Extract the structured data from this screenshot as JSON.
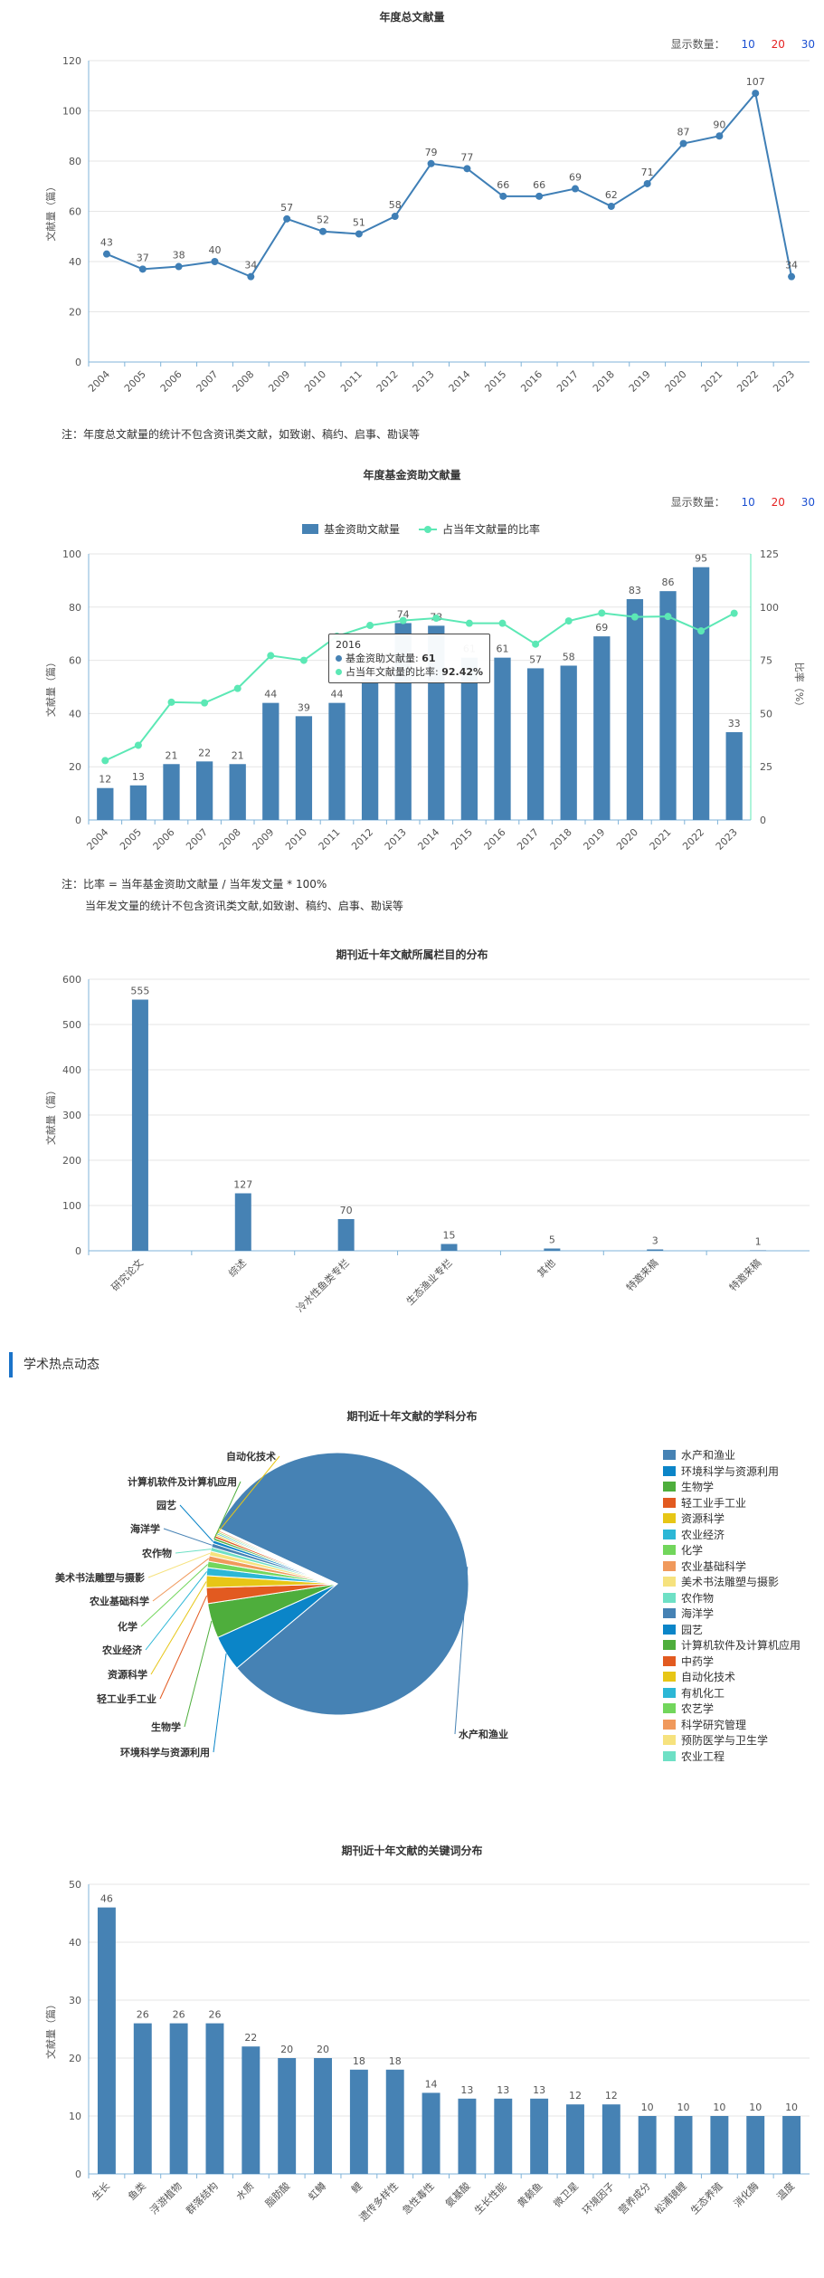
{
  "show_count": {
    "label": "显示数量：",
    "opt10": "10",
    "opt20": "20",
    "opt30": "30"
  },
  "chart1": {
    "title": "年度总文献量",
    "ylabel": "文献量（篇）",
    "note": "注：年度总文献量的统计不包含资讯类文献，如致谢、稿约、启事、勘误等",
    "chart_data": {
      "type": "line",
      "categories": [
        "2004",
        "2005",
        "2006",
        "2007",
        "2008",
        "2009",
        "2010",
        "2011",
        "2012",
        "2013",
        "2014",
        "2015",
        "2016",
        "2017",
        "2018",
        "2019",
        "2020",
        "2021",
        "2022",
        "2023"
      ],
      "values": [
        43,
        37,
        38,
        40,
        34,
        57,
        52,
        51,
        58,
        79,
        77,
        66,
        66,
        69,
        62,
        71,
        87,
        90,
        107,
        34
      ],
      "ylabel": "文献量（篇）",
      "ylim": [
        0,
        120
      ],
      "yticks": [
        0,
        20,
        40,
        60,
        80,
        100,
        120
      ],
      "color": "#3f7fb6"
    }
  },
  "chart2": {
    "title": "年度基金资助文献量",
    "ylabel": "文献量（篇）",
    "y2label": "比率（%）",
    "note1": "注：比率 = 当年基金资助文献量 / 当年发文量 * 100%",
    "note2": "当年发文量的统计不包含资讯类文献,如致谢、稿约、启事、勘误等",
    "tooltip": {
      "year": "2016",
      "bar_label": "基金资助文献量",
      "bar_value": "61",
      "line_label": "占当年文献量的比率",
      "line_value": "92.42%"
    },
    "chart_data": {
      "type": "bar",
      "categories": [
        "2004",
        "2005",
        "2006",
        "2007",
        "2008",
        "2009",
        "2010",
        "2011",
        "2012",
        "2013",
        "2014",
        "2015",
        "2016",
        "2017",
        "2018",
        "2019",
        "2020",
        "2021",
        "2022",
        "2023"
      ],
      "series": [
        {
          "name": "基金资助文献量",
          "type": "bar",
          "values": [
            12,
            13,
            21,
            22,
            21,
            44,
            39,
            44,
            53,
            74,
            73,
            61,
            61,
            57,
            58,
            69,
            83,
            86,
            95,
            33
          ],
          "color": "#4682b4"
        },
        {
          "name": "占当年文献量的比率",
          "type": "line",
          "axis": "right",
          "values": [
            27.9,
            35.1,
            55.3,
            55,
            61.8,
            77.2,
            75,
            86.3,
            91.4,
            93.7,
            94.8,
            92.4,
            92.4,
            82.6,
            93.5,
            97.2,
            95.4,
            95.6,
            88.8,
            97.1
          ],
          "color": "#5ce8b5"
        }
      ],
      "ylim": [
        0,
        100
      ],
      "yticks": [
        0,
        20,
        40,
        60,
        80,
        100
      ],
      "y2lim": [
        0,
        125
      ],
      "y2ticks": [
        0,
        25,
        50,
        75,
        100,
        125
      ],
      "ylabel": "文献量（篇）",
      "y2label": "比率（%）",
      "legend": "top-center"
    }
  },
  "chart3": {
    "title": "期刊近十年文献所属栏目的分布",
    "ylabel": "文献量（篇）",
    "chart_data": {
      "type": "bar",
      "categories": [
        "研究论文",
        "综述",
        "冷水性鱼类专栏",
        "生态渔业专栏",
        "其他",
        "特邀来稿",
        "特邀来稿"
      ],
      "values": [
        555,
        127,
        70,
        15,
        5,
        3,
        1
      ],
      "ylim": [
        0,
        600
      ],
      "yticks": [
        0,
        100,
        200,
        300,
        400,
        500,
        600
      ],
      "ylabel": "文献量（篇）",
      "color": "#4682b4"
    }
  },
  "section_head": "学术热点动态",
  "chart4": {
    "title": "期刊近十年文献的学科分布",
    "chart_data": {
      "type": "pie",
      "labels": [
        "水产和渔业",
        "环境科学与资源利用",
        "生物学",
        "轻工业手工业",
        "资源科学",
        "农业经济",
        "化学",
        "农业基础科学",
        "美术书法雕塑与摄影",
        "农作物",
        "海洋学",
        "园艺",
        "计算机软件及计算机应用",
        "中药学",
        "自动化技术",
        "有机化工",
        "农艺学",
        "科学研究管理",
        "预防医学与卫生学",
        "农业工程"
      ],
      "values": [
        840,
        45,
        44,
        20,
        15,
        10,
        8,
        7,
        6,
        5,
        5,
        4,
        3,
        3,
        2,
        2,
        2,
        2,
        1,
        1
      ],
      "colors": [
        "#4682b4",
        "#0b85c8",
        "#4eae3c",
        "#e25a20",
        "#e7c616",
        "#2cb7d6",
        "#72d65c",
        "#f0995c",
        "#f6e27e",
        "#6ee0c5",
        "#4682b4",
        "#0b85c8",
        "#4eae3c",
        "#e25a20",
        "#e7c616",
        "#2cb7d6",
        "#72d65c",
        "#f0995c",
        "#f6e27e",
        "#6ee0c5"
      ],
      "legend": "right",
      "callouts": [
        "自动化技术",
        "计算机软件及计算机应用",
        "园艺",
        "海洋学",
        "农作物",
        "美术书法雕塑与摄影",
        "农业基础科学",
        "化学",
        "农业经济",
        "资源科学",
        "轻工业手工业",
        "生物学",
        "环境科学与资源利用",
        "水产和渔业"
      ]
    }
  },
  "chart5": {
    "title": "期刊近十年文献的关键词分布",
    "ylabel": "文献量（篇）",
    "chart_data": {
      "type": "bar",
      "categories": [
        "生长",
        "鱼类",
        "浮游植物",
        "群落结构",
        "水质",
        "脂肪酸",
        "虹鳟",
        "鲤",
        "遗传多样性",
        "急性毒性",
        "氨基酸",
        "生长性能",
        "黄颡鱼",
        "微卫星",
        "环境因子",
        "营养成分",
        "松浦镜鲤",
        "生态养殖",
        "消化酶",
        "温度"
      ],
      "values": [
        46,
        26,
        26,
        26,
        22,
        20,
        20,
        18,
        18,
        14,
        13,
        13,
        13,
        12,
        12,
        10,
        10,
        10,
        10,
        10
      ],
      "ylim": [
        0,
        50
      ],
      "yticks": [
        0,
        10,
        20,
        30,
        40,
        50
      ],
      "ylabel": "文献量（篇）",
      "color": "#4682b4"
    }
  }
}
